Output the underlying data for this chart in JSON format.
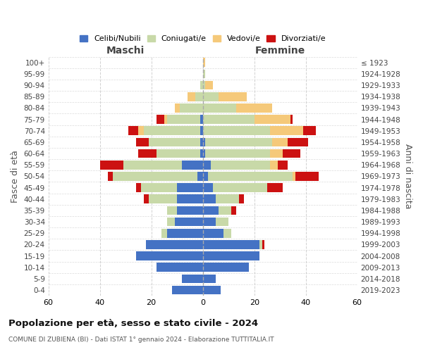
{
  "age_groups": [
    "0-4",
    "5-9",
    "10-14",
    "15-19",
    "20-24",
    "25-29",
    "30-34",
    "35-39",
    "40-44",
    "45-49",
    "50-54",
    "55-59",
    "60-64",
    "65-69",
    "70-74",
    "75-79",
    "80-84",
    "85-89",
    "90-94",
    "95-99",
    "100+"
  ],
  "birth_years": [
    "2019-2023",
    "2014-2018",
    "2009-2013",
    "2004-2008",
    "1999-2003",
    "1994-1998",
    "1989-1993",
    "1984-1988",
    "1979-1983",
    "1974-1978",
    "1969-1973",
    "1964-1968",
    "1959-1963",
    "1954-1958",
    "1949-1953",
    "1944-1948",
    "1939-1943",
    "1934-1938",
    "1929-1933",
    "1924-1928",
    "≤ 1923"
  ],
  "colors": {
    "celibi": "#4472C4",
    "coniugati": "#c8d9a8",
    "vedovi": "#f5c97a",
    "divorziati": "#cc1111"
  },
  "males": {
    "celibi": [
      12,
      8,
      18,
      26,
      22,
      14,
      11,
      10,
      10,
      10,
      2,
      8,
      1,
      1,
      1,
      1,
      0,
      0,
      0,
      0,
      0
    ],
    "coniugati": [
      0,
      0,
      0,
      0,
      0,
      2,
      3,
      4,
      11,
      14,
      33,
      23,
      17,
      20,
      22,
      13,
      9,
      3,
      1,
      0,
      0
    ],
    "vedovi": [
      0,
      0,
      0,
      0,
      0,
      0,
      0,
      0,
      0,
      0,
      0,
      0,
      0,
      0,
      2,
      1,
      2,
      3,
      0,
      0,
      0
    ],
    "divorziati": [
      0,
      0,
      0,
      0,
      0,
      0,
      0,
      0,
      2,
      2,
      2,
      9,
      7,
      5,
      4,
      3,
      0,
      0,
      0,
      0,
      0
    ]
  },
  "females": {
    "nubili": [
      7,
      5,
      18,
      22,
      22,
      8,
      5,
      6,
      5,
      4,
      2,
      3,
      1,
      1,
      0,
      0,
      0,
      0,
      0,
      0,
      0
    ],
    "coniugati": [
      0,
      0,
      0,
      0,
      1,
      3,
      5,
      5,
      9,
      21,
      33,
      23,
      25,
      26,
      26,
      20,
      13,
      6,
      1,
      1,
      0
    ],
    "vedovi": [
      0,
      0,
      0,
      0,
      0,
      0,
      0,
      0,
      0,
      0,
      1,
      3,
      5,
      6,
      13,
      14,
      14,
      11,
      3,
      0,
      1
    ],
    "divorziati": [
      0,
      0,
      0,
      0,
      1,
      0,
      0,
      2,
      2,
      6,
      9,
      4,
      7,
      8,
      5,
      1,
      0,
      0,
      0,
      0,
      0
    ]
  },
  "xlim": 60,
  "title": "Popolazione per età, sesso e stato civile - 2024",
  "subtitle": "COMUNE DI ZUBIENA (BI) - Dati ISTAT 1° gennaio 2024 - Elaborazione TUTTITALIA.IT",
  "xlabel_left": "Maschi",
  "xlabel_right": "Femmine",
  "ylabel_left": "Fasce di età",
  "ylabel_right": "Anni di nascita",
  "legend_labels": [
    "Celibi/Nubili",
    "Coniugati/e",
    "Vedovi/e",
    "Divorziati/e"
  ]
}
